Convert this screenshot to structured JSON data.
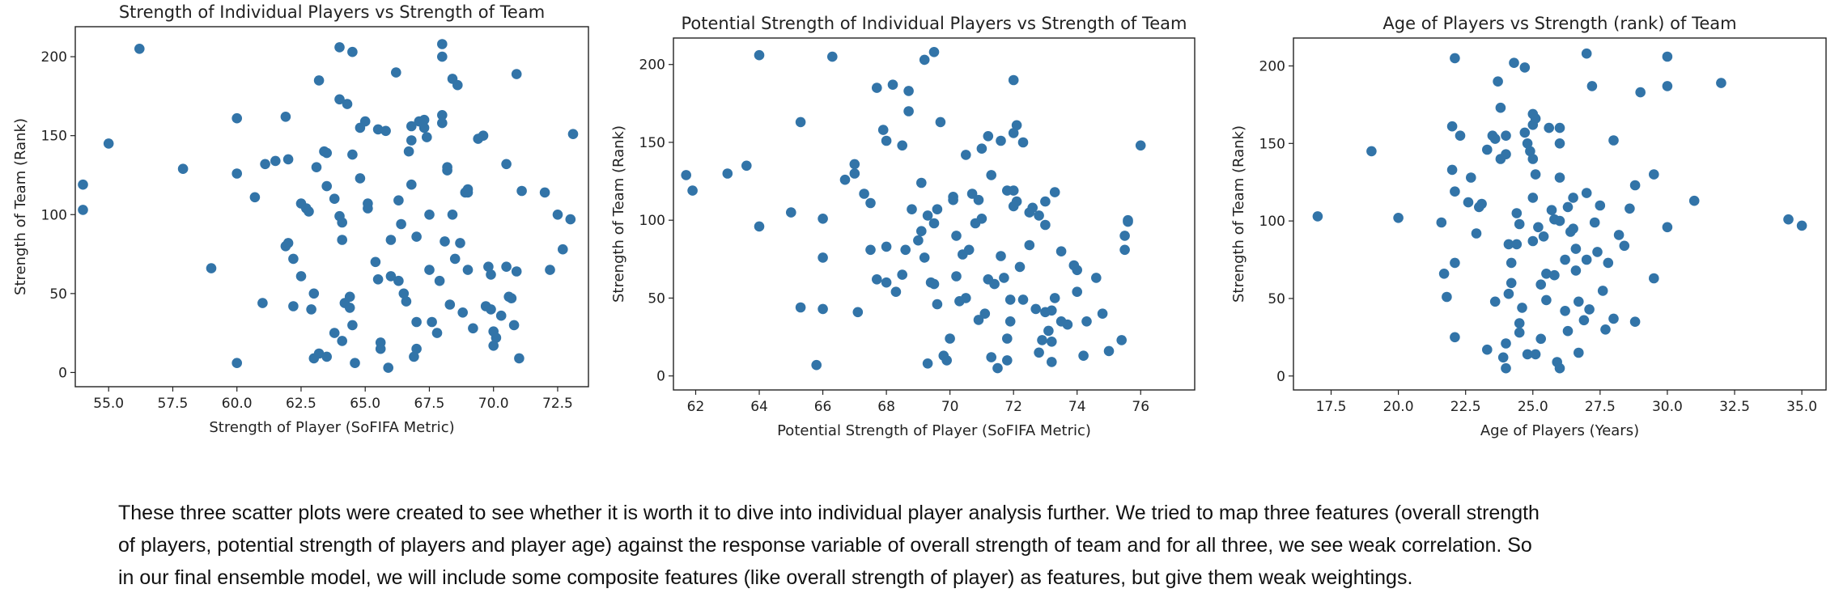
{
  "caption": {
    "lines": [
      "These three scatter plots were created to see whether it is worth it to dive into individual player analysis further. We tried to map three features (overall strength",
      "of players, potential strength of players and player age) against the response variable of overall strength of team and for all three, we see weak correlation. So",
      "in our final ensemble model, we will include some composite features (like overall strength of player) as features, but give them weak weightings."
    ]
  },
  "colors": {
    "marker": "#3274a8",
    "axes": "#222222",
    "text": "#222222"
  },
  "chart_data": [
    {
      "type": "scatter",
      "title": "Strength of Individual Players vs Strength of Team",
      "xlabel": "Strength of Player (SoFIFA Metric)",
      "ylabel": "Strength of Team (Rank)",
      "xlim": [
        53.7,
        73.7
      ],
      "ylim": [
        -9,
        219
      ],
      "xticks": [
        55.0,
        57.5,
        60.0,
        62.5,
        65.0,
        67.5,
        70.0,
        72.5
      ],
      "xtick_labels": [
        "55.0",
        "57.5",
        "60.0",
        "62.5",
        "65.0",
        "67.5",
        "70.0",
        "72.5"
      ],
      "yticks": [
        0,
        50,
        100,
        150,
        200
      ],
      "ytick_labels": [
        "0",
        "50",
        "100",
        "150",
        "200"
      ],
      "grid": false,
      "x": [
        54.0,
        54.0,
        55.0,
        56.2,
        57.9,
        59.0,
        60.0,
        60.0,
        60.0,
        60.7,
        61.0,
        61.1,
        61.5,
        61.9,
        61.9,
        62.0,
        62.0,
        62.2,
        62.2,
        62.5,
        62.5,
        62.7,
        62.8,
        62.9,
        63.0,
        63.0,
        63.1,
        63.2,
        63.2,
        63.4,
        63.5,
        63.5,
        63.5,
        63.8,
        63.8,
        64.0,
        64.0,
        64.0,
        64.1,
        64.1,
        64.1,
        64.2,
        64.3,
        64.4,
        64.4,
        64.5,
        64.5,
        64.5,
        64.6,
        64.8,
        64.8,
        65.0,
        65.1,
        65.1,
        65.4,
        65.5,
        65.5,
        65.6,
        65.6,
        65.8,
        65.9,
        66.0,
        66.0,
        66.2,
        66.3,
        66.3,
        66.4,
        66.5,
        66.6,
        66.7,
        66.8,
        66.8,
        66.8,
        66.9,
        67.0,
        67.0,
        67.0,
        67.1,
        67.3,
        67.3,
        67.4,
        67.5,
        67.5,
        67.6,
        67.8,
        67.9,
        68.0,
        68.0,
        68.0,
        68.0,
        68.1,
        68.2,
        68.2,
        68.3,
        68.4,
        68.4,
        68.5,
        68.6,
        68.7,
        68.8,
        68.9,
        69.0,
        69.0,
        69.0,
        69.2,
        69.4,
        69.6,
        69.7,
        69.8,
        69.9,
        69.9,
        70.0,
        70.0,
        70.1,
        70.3,
        70.5,
        70.5,
        70.6,
        70.7,
        70.8,
        70.9,
        70.9,
        71.0,
        71.1,
        72.0,
        72.2,
        72.5,
        72.7,
        73.0,
        73.1
      ],
      "y": [
        119,
        103,
        145,
        205,
        129,
        66,
        161,
        126,
        6,
        111,
        44,
        132,
        134,
        162,
        80,
        82,
        135,
        42,
        72,
        107,
        61,
        104,
        102,
        40,
        50,
        9,
        130,
        12,
        185,
        140,
        139,
        118,
        10,
        110,
        25,
        206,
        173,
        99,
        95,
        20,
        84,
        44,
        170,
        48,
        41,
        203,
        138,
        30,
        6,
        155,
        123,
        159,
        107,
        104,
        70,
        154,
        59,
        15,
        19,
        153,
        3,
        84,
        61,
        190,
        109,
        58,
        94,
        50,
        45,
        140,
        147,
        119,
        156,
        10,
        15,
        32,
        86,
        159,
        155,
        160,
        149,
        100,
        65,
        32,
        25,
        58,
        163,
        158,
        208,
        200,
        83,
        128,
        130,
        43,
        186,
        100,
        72,
        182,
        82,
        38,
        114,
        114,
        116,
        65,
        28,
        148,
        150,
        42,
        67,
        62,
        40,
        17,
        26,
        22,
        36,
        67,
        132,
        48,
        47,
        30,
        64,
        189,
        9,
        115,
        114,
        65,
        100,
        78,
        97,
        151
      ],
      "n_points": 130
    },
    {
      "type": "scatter",
      "title": "Potential Strength of Individual Players vs Strength of Team",
      "xlabel": "Potential Strength of Player (SoFIFA Metric)",
      "ylabel": "Strength of Team (Rank)",
      "xlim": [
        61.3,
        77.7
      ],
      "ylim": [
        -9,
        217
      ],
      "xticks": [
        62,
        64,
        66,
        68,
        70,
        72,
        74,
        76
      ],
      "xtick_labels": [
        "62",
        "64",
        "66",
        "68",
        "70",
        "72",
        "74",
        "76"
      ],
      "yticks": [
        0,
        50,
        100,
        150,
        200
      ],
      "ytick_labels": [
        "0",
        "50",
        "100",
        "150",
        "200"
      ],
      "grid": false,
      "x": [
        61.7,
        61.9,
        63.0,
        63.6,
        64.0,
        64.0,
        65.0,
        65.3,
        65.3,
        65.8,
        66.0,
        66.0,
        66.0,
        66.3,
        66.7,
        67.0,
        67.0,
        67.1,
        67.3,
        67.5,
        67.5,
        67.7,
        67.7,
        67.9,
        68.0,
        68.0,
        68.0,
        68.2,
        68.3,
        68.5,
        68.5,
        68.6,
        68.7,
        68.7,
        68.8,
        69.0,
        69.1,
        69.1,
        69.2,
        69.2,
        69.3,
        69.3,
        69.4,
        69.5,
        69.5,
        69.5,
        69.6,
        69.6,
        69.7,
        69.8,
        69.9,
        70.0,
        70.1,
        70.1,
        70.2,
        70.2,
        70.3,
        70.4,
        70.5,
        70.5,
        70.6,
        70.7,
        70.8,
        70.9,
        70.9,
        71.0,
        71.0,
        71.1,
        71.2,
        71.2,
        71.3,
        71.3,
        71.4,
        71.5,
        71.6,
        71.6,
        71.7,
        71.8,
        71.8,
        71.8,
        71.9,
        71.9,
        72.0,
        72.0,
        72.0,
        72.0,
        72.1,
        72.1,
        72.2,
        72.3,
        72.3,
        72.5,
        72.5,
        72.6,
        72.7,
        72.8,
        72.8,
        72.9,
        73.0,
        73.0,
        73.0,
        73.1,
        73.2,
        73.2,
        73.2,
        73.3,
        73.3,
        73.5,
        73.5,
        73.7,
        73.9,
        74.0,
        74.0,
        74.2,
        74.3,
        74.6,
        74.8,
        75.0,
        75.4,
        75.5,
        75.5,
        75.6,
        75.6,
        76.0
      ],
      "y": [
        129,
        119,
        130,
        135,
        206,
        96,
        105,
        163,
        44,
        7,
        101,
        76,
        43,
        205,
        126,
        136,
        130,
        41,
        117,
        81,
        111,
        185,
        62,
        158,
        151,
        83,
        60,
        187,
        54,
        65,
        148,
        81,
        183,
        170,
        107,
        87,
        124,
        93,
        76,
        203,
        8,
        103,
        60,
        208,
        59,
        98,
        107,
        46,
        163,
        13,
        10,
        24,
        113,
        115,
        90,
        64,
        48,
        78,
        142,
        50,
        81,
        117,
        98,
        113,
        36,
        101,
        146,
        40,
        154,
        62,
        12,
        129,
        59,
        5,
        151,
        77,
        63,
        119,
        24,
        10,
        35,
        49,
        156,
        109,
        119,
        190,
        161,
        112,
        70,
        150,
        49,
        105,
        84,
        108,
        43,
        103,
        15,
        23,
        41,
        112,
        97,
        29,
        42,
        22,
        9,
        118,
        50,
        80,
        35,
        33,
        71,
        54,
        68,
        13,
        35,
        63,
        40,
        16,
        23,
        81,
        90,
        100,
        99,
        148
      ],
      "n_points": 124
    },
    {
      "type": "scatter",
      "title": "Age of Players vs Strength (rank) of Team",
      "xlabel": "Age of Players (Years)",
      "ylabel": "Strength of Team (Rank)",
      "xlim": [
        16.1,
        35.9
      ],
      "ylim": [
        -9,
        218
      ],
      "xticks": [
        17.5,
        20.0,
        22.5,
        25.0,
        27.5,
        30.0,
        32.5,
        35.0
      ],
      "xtick_labels": [
        "17.5",
        "20.0",
        "22.5",
        "25.0",
        "27.5",
        "30.0",
        "32.5",
        "35.0"
      ],
      "yticks": [
        0,
        50,
        100,
        150,
        200
      ],
      "ytick_labels": [
        "0",
        "50",
        "100",
        "150",
        "200"
      ],
      "grid": false,
      "x": [
        17.0,
        19.0,
        20.0,
        21.6,
        21.7,
        21.8,
        22.0,
        22.0,
        22.1,
        22.1,
        22.1,
        22.1,
        22.3,
        22.6,
        22.7,
        22.9,
        23.0,
        23.1,
        23.3,
        23.3,
        23.5,
        23.6,
        23.6,
        23.7,
        23.8,
        23.8,
        23.9,
        24.0,
        24.0,
        24.0,
        24.0,
        24.1,
        24.1,
        24.2,
        24.2,
        24.3,
        24.4,
        24.4,
        24.5,
        24.5,
        24.5,
        24.6,
        24.7,
        24.7,
        24.8,
        24.8,
        24.9,
        25.0,
        25.0,
        25.0,
        25.0,
        25.0,
        25.1,
        25.1,
        25.1,
        25.2,
        25.3,
        25.3,
        25.4,
        25.5,
        25.5,
        25.6,
        25.7,
        25.8,
        25.8,
        25.9,
        26.0,
        26.0,
        26.0,
        26.0,
        26.0,
        26.2,
        26.2,
        26.3,
        26.3,
        26.4,
        26.5,
        26.5,
        26.6,
        26.6,
        26.7,
        26.7,
        26.9,
        27.0,
        27.0,
        27.0,
        27.1,
        27.2,
        27.3,
        27.4,
        27.5,
        27.6,
        27.7,
        27.8,
        28.0,
        28.0,
        28.2,
        28.4,
        28.6,
        28.8,
        28.8,
        29.0,
        29.5,
        29.5,
        30.0,
        30.0,
        30.0,
        31.0,
        32.0,
        34.5,
        35.0
      ],
      "y": [
        103,
        145,
        102,
        99,
        66,
        51,
        161,
        133,
        119,
        73,
        25,
        205,
        155,
        112,
        128,
        92,
        109,
        111,
        146,
        17,
        155,
        48,
        153,
        190,
        173,
        140,
        12,
        155,
        143,
        21,
        5,
        85,
        53,
        60,
        73,
        202,
        105,
        85,
        28,
        34,
        98,
        44,
        199,
        157,
        14,
        150,
        145,
        140,
        169,
        162,
        115,
        87,
        166,
        130,
        14,
        96,
        59,
        24,
        90,
        66,
        49,
        160,
        107,
        65,
        101,
        9,
        128,
        150,
        160,
        100,
        5,
        75,
        42,
        29,
        109,
        93,
        115,
        95,
        68,
        82,
        48,
        15,
        36,
        75,
        118,
        208,
        43,
        187,
        99,
        80,
        110,
        55,
        30,
        73,
        37,
        152,
        91,
        84,
        108,
        35,
        123,
        183,
        130,
        63,
        96,
        206,
        187,
        113,
        189,
        101,
        97
      ],
      "n_points": 111
    }
  ]
}
